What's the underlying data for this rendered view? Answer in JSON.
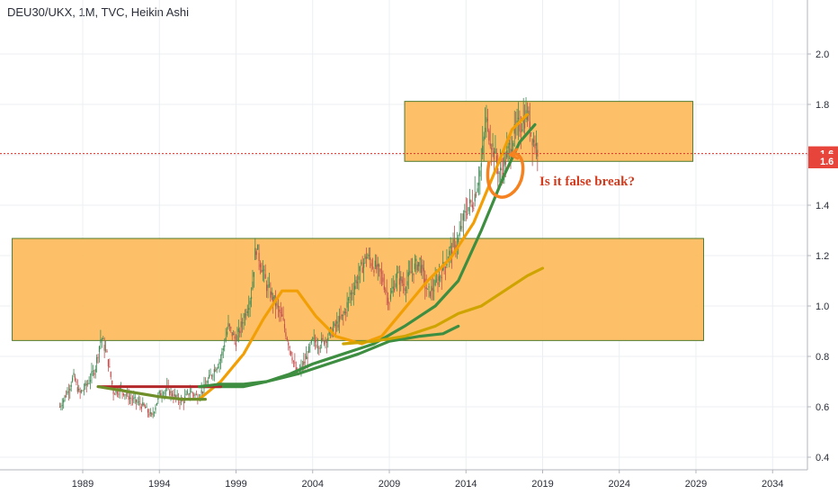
{
  "header": {
    "title": "DEU30/UKX, 1M, TVC, Heikin Ashi"
  },
  "chart_data": {
    "type": "candlestick",
    "x_ticks": [
      "1989",
      "1994",
      "1999",
      "2004",
      "2009",
      "2014",
      "2019",
      "2024",
      "2029",
      "2034"
    ],
    "y_ticks": [
      "0.4",
      "0.6",
      "0.8",
      "1.0",
      "1.2",
      "1.4",
      "1.6",
      "1.8",
      "2.0"
    ],
    "ylim": [
      0.36,
      2.22
    ],
    "xlim": [
      1985.2,
      2037.2
    ],
    "last_price_labels": [
      "1.6",
      "1.6"
    ],
    "last_price": 1.605,
    "last_price_2": 1.575,
    "annotation": "Is it false break?",
    "zones": [
      {
        "x0": 1984.4,
        "x1": 2029.5,
        "y0": 0.863,
        "y1": 1.268
      },
      {
        "x0": 2010.0,
        "x1": 2028.8,
        "y0": 1.574,
        "y1": 1.812
      }
    ],
    "price_path": [
      [
        1987.5,
        0.6
      ],
      [
        1988.0,
        0.66
      ],
      [
        1988.4,
        0.72
      ],
      [
        1988.8,
        0.65
      ],
      [
        1989.3,
        0.69
      ],
      [
        1989.8,
        0.75
      ],
      [
        1990.2,
        0.88
      ],
      [
        1990.6,
        0.8
      ],
      [
        1991.0,
        0.66
      ],
      [
        1991.5,
        0.67
      ],
      [
        1992.0,
        0.64
      ],
      [
        1992.5,
        0.62
      ],
      [
        1993.0,
        0.6
      ],
      [
        1993.5,
        0.56
      ],
      [
        1994.0,
        0.65
      ],
      [
        1994.5,
        0.67
      ],
      [
        1995.0,
        0.64
      ],
      [
        1995.5,
        0.62
      ],
      [
        1996.0,
        0.66
      ],
      [
        1996.5,
        0.64
      ],
      [
        1997.0,
        0.68
      ],
      [
        1997.5,
        0.74
      ],
      [
        1998.0,
        0.79
      ],
      [
        1998.5,
        0.92
      ],
      [
        1999.0,
        0.86
      ],
      [
        1999.5,
        0.95
      ],
      [
        2000.0,
        1.05
      ],
      [
        2000.3,
        1.24
      ],
      [
        2000.7,
        1.15
      ],
      [
        2001.0,
        1.08
      ],
      [
        2001.5,
        1.02
      ],
      [
        2002.0,
        0.95
      ],
      [
        2002.5,
        0.84
      ],
      [
        2003.0,
        0.72
      ],
      [
        2003.5,
        0.78
      ],
      [
        2004.0,
        0.86
      ],
      [
        2004.5,
        0.85
      ],
      [
        2005.0,
        0.88
      ],
      [
        2005.5,
        0.92
      ],
      [
        2006.0,
        0.96
      ],
      [
        2006.5,
        1.05
      ],
      [
        2007.0,
        1.12
      ],
      [
        2007.5,
        1.2
      ],
      [
        2008.0,
        1.16
      ],
      [
        2008.5,
        1.12
      ],
      [
        2009.0,
        1.02
      ],
      [
        2009.5,
        1.12
      ],
      [
        2010.0,
        1.08
      ],
      [
        2010.5,
        1.14
      ],
      [
        2011.0,
        1.18
      ],
      [
        2011.5,
        1.05
      ],
      [
        2012.0,
        1.08
      ],
      [
        2012.5,
        1.15
      ],
      [
        2013.0,
        1.22
      ],
      [
        2013.5,
        1.26
      ],
      [
        2014.0,
        1.38
      ],
      [
        2014.5,
        1.42
      ],
      [
        2015.0,
        1.56
      ],
      [
        2015.3,
        1.74
      ],
      [
        2015.8,
        1.62
      ],
      [
        2016.2,
        1.52
      ],
      [
        2016.7,
        1.6
      ],
      [
        2017.0,
        1.66
      ],
      [
        2017.5,
        1.72
      ],
      [
        2018.0,
        1.76
      ],
      [
        2018.4,
        1.66
      ],
      [
        2018.7,
        1.62
      ]
    ],
    "series": [
      {
        "color": "#f29f05",
        "values": [
          [
            1996.6,
            0.63
          ],
          [
            1998.0,
            0.7
          ],
          [
            1999.5,
            0.81
          ],
          [
            2000.8,
            0.95
          ],
          [
            2002.0,
            1.06
          ],
          [
            2003.0,
            1.06
          ],
          [
            2004.2,
            0.96
          ],
          [
            2005.5,
            0.88
          ],
          [
            2007.2,
            0.85
          ],
          [
            2008.5,
            0.88
          ],
          [
            2010.0,
            0.99
          ],
          [
            2011.5,
            1.1
          ],
          [
            2013.0,
            1.19
          ],
          [
            2014.5,
            1.33
          ],
          [
            2016.0,
            1.55
          ],
          [
            2017.0,
            1.7
          ],
          [
            2018.0,
            1.76
          ]
        ]
      },
      {
        "color": "#3e8e41",
        "values": [
          [
            1996.6,
            0.68
          ],
          [
            1998.0,
            0.68
          ],
          [
            1999.5,
            0.68
          ],
          [
            2001.0,
            0.7
          ],
          [
            2002.5,
            0.73
          ],
          [
            2004.0,
            0.77
          ],
          [
            2006.0,
            0.81
          ],
          [
            2008.0,
            0.85
          ],
          [
            2010.0,
            0.92
          ],
          [
            2012.0,
            1.0
          ],
          [
            2013.5,
            1.1
          ],
          [
            2015.0,
            1.3
          ],
          [
            2016.5,
            1.52
          ],
          [
            2017.5,
            1.65
          ],
          [
            2018.5,
            1.72
          ]
        ]
      },
      {
        "color": "#b2282b",
        "values": [
          [
            1990.0,
            0.68
          ],
          [
            1992.0,
            0.68
          ],
          [
            1994.0,
            0.68
          ],
          [
            1996.0,
            0.68
          ],
          [
            1998.0,
            0.68
          ]
        ]
      },
      {
        "color": "#6f8f2a",
        "values": [
          [
            1990.0,
            0.68
          ],
          [
            1992.0,
            0.66
          ],
          [
            1994.0,
            0.64
          ],
          [
            1995.5,
            0.63
          ],
          [
            1997.0,
            0.63
          ]
        ]
      },
      {
        "color": "#3e8e41",
        "values": [
          [
            1996.6,
            0.68
          ],
          [
            1998.0,
            0.69
          ],
          [
            1999.5,
            0.69
          ],
          [
            2001.0,
            0.7
          ],
          [
            2003.0,
            0.73
          ],
          [
            2005.0,
            0.77
          ],
          [
            2007.0,
            0.81
          ],
          [
            2009.0,
            0.86
          ],
          [
            2011.0,
            0.88
          ],
          [
            2012.5,
            0.89
          ],
          [
            2013.5,
            0.92
          ]
        ]
      },
      {
        "color": "#cfa400",
        "values": [
          [
            2006.0,
            0.85
          ],
          [
            2008.0,
            0.86
          ],
          [
            2010.0,
            0.88
          ],
          [
            2012.0,
            0.92
          ],
          [
            2013.5,
            0.97
          ],
          [
            2015.0,
            1.0
          ],
          [
            2016.5,
            1.06
          ],
          [
            2018.0,
            1.12
          ],
          [
            2019.0,
            1.15
          ]
        ]
      }
    ]
  }
}
